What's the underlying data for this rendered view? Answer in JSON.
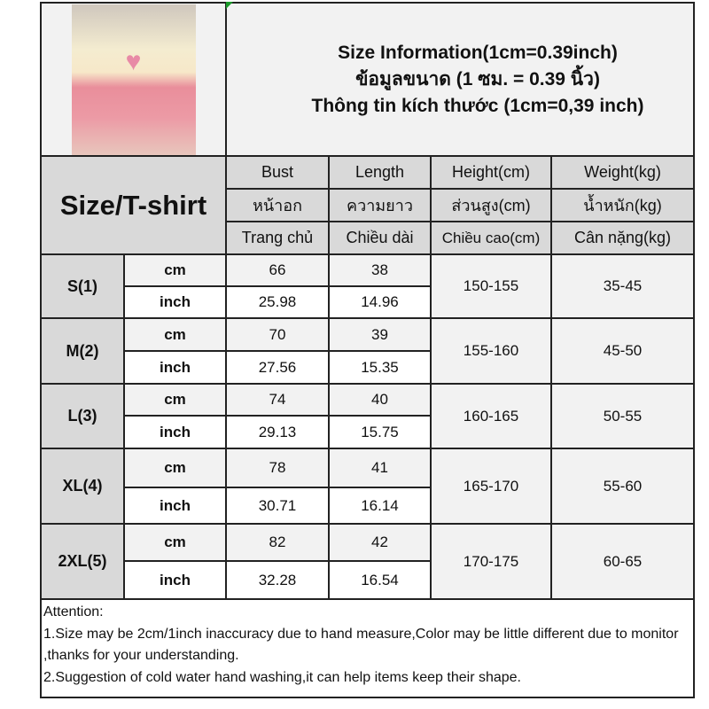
{
  "title_lines": [
    "Size Information(1cm=0.39inch)",
    "ข้อมูลขนาด (1 ซม. = 0.39 นิ้ว)",
    "Thông tin kích thước (1cm=0,39 inch)"
  ],
  "corner_label": "Size/T-shirt",
  "columns": [
    {
      "en": "Bust",
      "th": "หน้าอก",
      "vi": "Trang chủ"
    },
    {
      "en": "Length",
      "th": "ความยาว",
      "vi": "Chiều dài"
    },
    {
      "en": "Height(cm)",
      "th": "ส่วนสูง(cm)",
      "vi": "Chiều cao(cm)"
    },
    {
      "en": "Weight(kg)",
      "th": "น้ำหนัก(kg)",
      "vi": "Cân nặng(kg)"
    }
  ],
  "units": {
    "cm": "cm",
    "inch": "inch"
  },
  "sizes": [
    {
      "size": "S(1)",
      "bust_cm": "66",
      "length_cm": "38",
      "bust_in": "25.98",
      "length_in": "14.96",
      "height": "150-155",
      "weight": "35-45"
    },
    {
      "size": "M(2)",
      "bust_cm": "70",
      "length_cm": "39",
      "bust_in": "27.56",
      "length_in": "15.35",
      "height": "155-160",
      "weight": "45-50"
    },
    {
      "size": "L(3)",
      "bust_cm": "74",
      "length_cm": "40",
      "bust_in": "29.13",
      "length_in": "15.75",
      "height": "160-165",
      "weight": "50-55"
    },
    {
      "size": "XL(4)",
      "bust_cm": "78",
      "length_cm": "41",
      "bust_in": "30.71",
      "length_in": "16.14",
      "height": "165-170",
      "weight": "55-60"
    },
    {
      "size": "2XL(5)",
      "bust_cm": "82",
      "length_cm": "42",
      "bust_in": "32.28",
      "length_in": "16.54",
      "height": "170-175",
      "weight": "60-65"
    }
  ],
  "attention": {
    "heading": "Attention:",
    "line1": "1.Size may be 2cm/1inch inaccuracy due to hand measure,Color may be little different due to monitor ,thanks for your understanding.",
    "line2": "2.Suggestion of cold water hand washing,it can help items keep their shape."
  }
}
